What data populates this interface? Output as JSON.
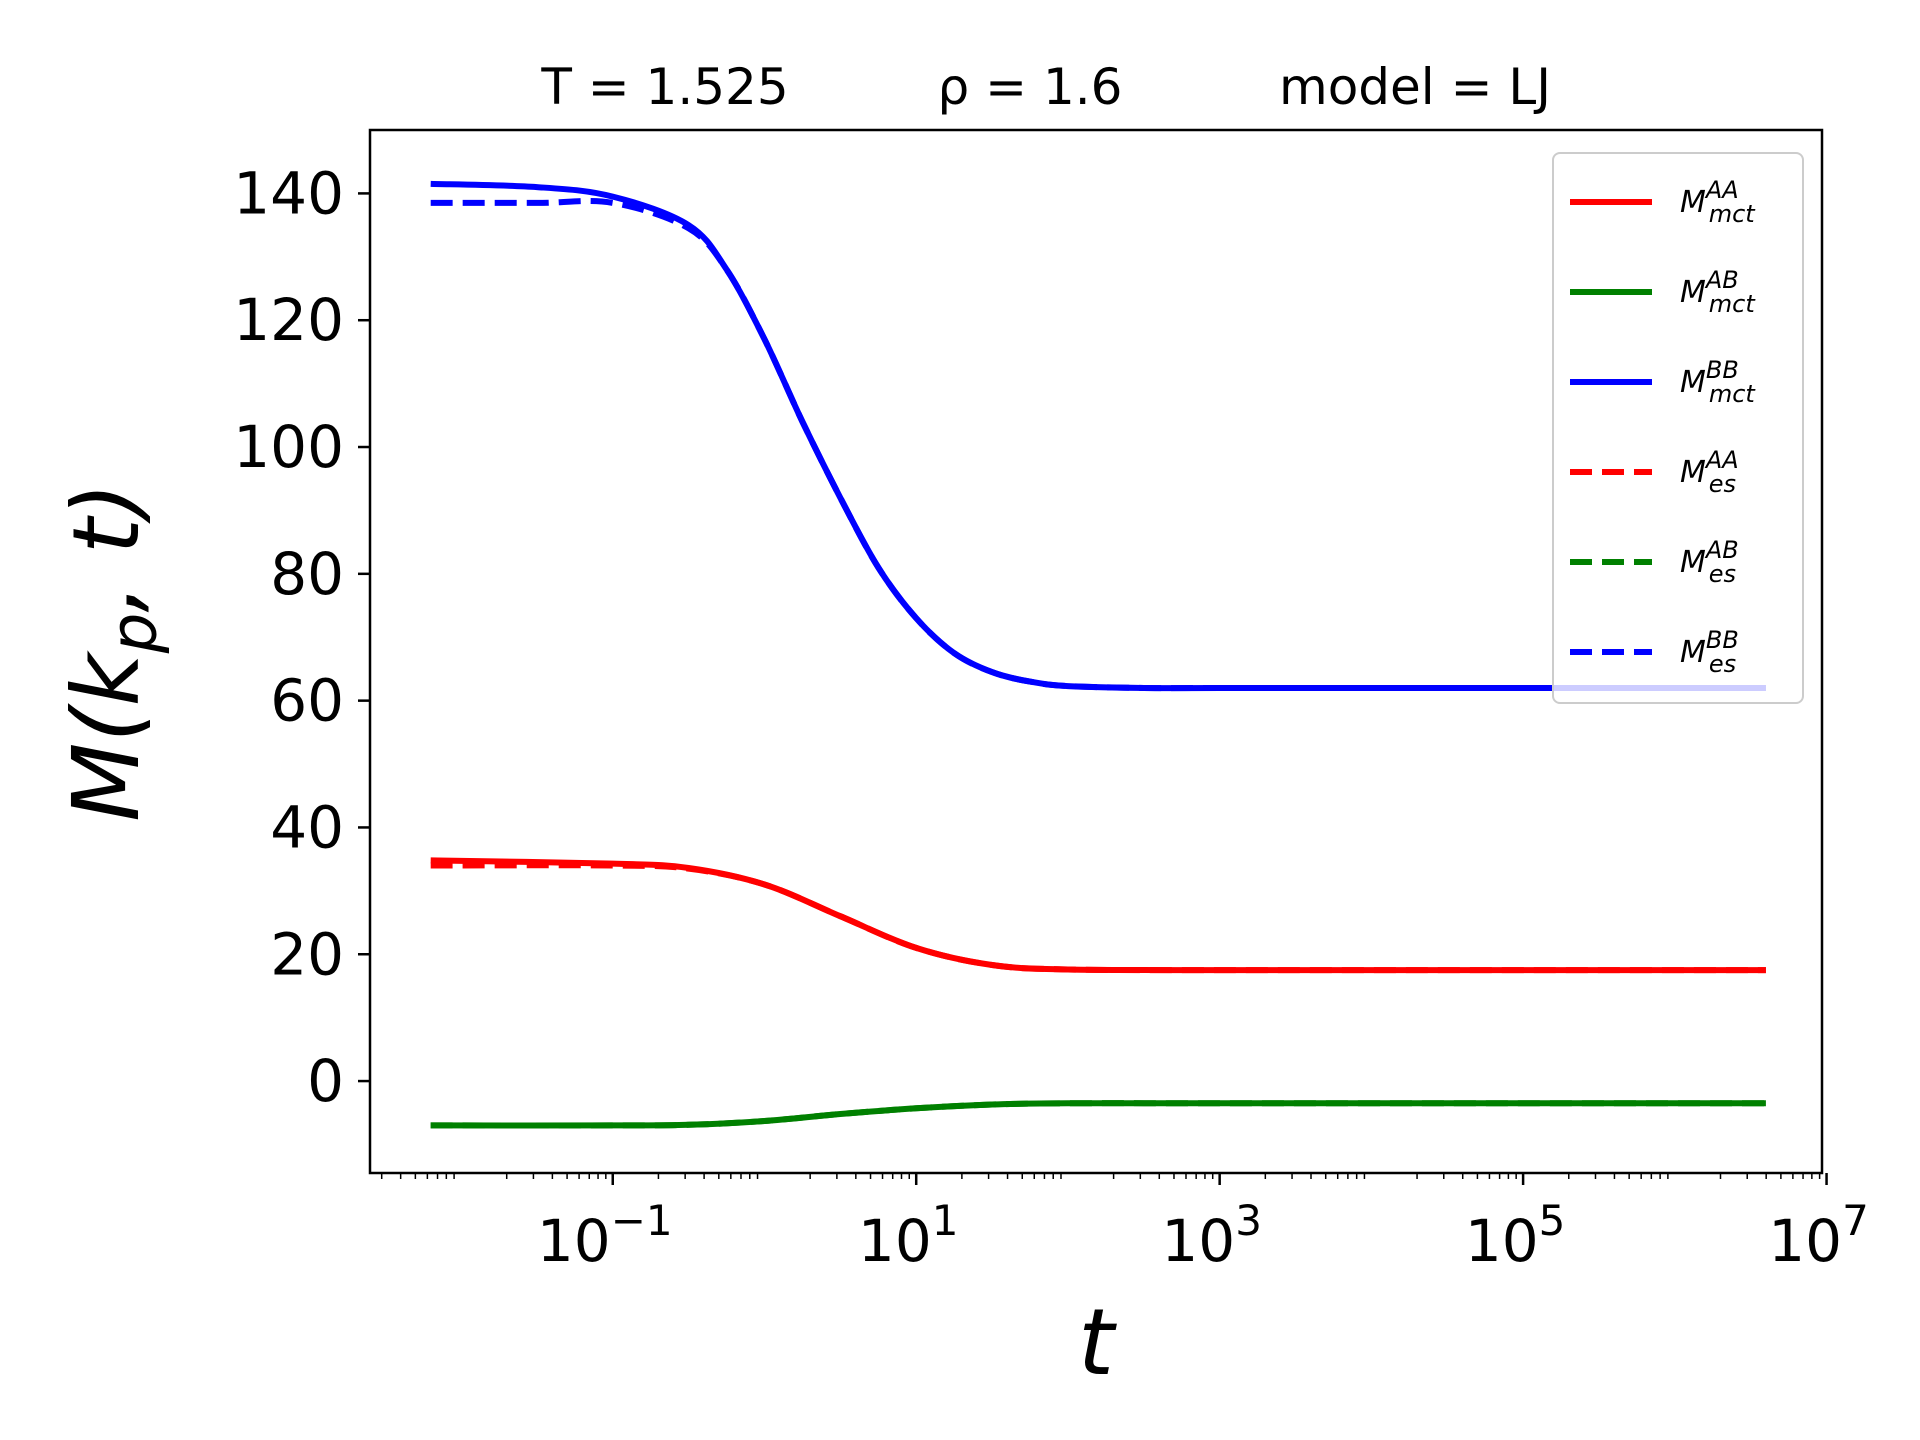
{
  "chart_data": {
    "type": "line",
    "title_parts": {
      "temperature": "T = 1.525",
      "density": "ρ = 1.6",
      "model": "model = LJ"
    },
    "xlabel": "t",
    "ylabel": "M(k_p, t)",
    "xscale": "log",
    "xlim_log10": [
      -2.6,
      6.97
    ],
    "ylim": [
      -14.5,
      150
    ],
    "x_ticks": [
      {
        "base": "10",
        "exp": "−1",
        "log10": -1
      },
      {
        "base": "10",
        "exp": "1",
        "log10": 1
      },
      {
        "base": "10",
        "exp": "3",
        "log10": 3
      },
      {
        "base": "10",
        "exp": "5",
        "log10": 5
      },
      {
        "base": "10",
        "exp": "7",
        "log10": 7
      }
    ],
    "y_ticks": [
      0,
      20,
      40,
      60,
      80,
      100,
      120,
      140
    ],
    "y_tick_labels": [
      "0",
      "20",
      "40",
      "60",
      "80",
      "100",
      "120",
      "140"
    ],
    "legend_position": "upper-right",
    "series": [
      {
        "name": "M_mct^AA",
        "sym": "M",
        "sup": "AA",
        "sub": "mct",
        "color": "#ff0000",
        "dash": "solid",
        "log10_t": [
          -2.2,
          -1.0,
          -0.5,
          0,
          0.5,
          1.0,
          1.5,
          2.0,
          3.0,
          4.0,
          5.0,
          6.6
        ],
        "values": [
          34.8,
          34.3,
          33.6,
          31.0,
          26.0,
          21.0,
          18.3,
          17.6,
          17.5,
          17.5,
          17.5,
          17.5
        ]
      },
      {
        "name": "M_mct^AB",
        "sym": "M",
        "sup": "AB",
        "sub": "mct",
        "color": "#008000",
        "dash": "solid",
        "log10_t": [
          -2.2,
          -1.0,
          -0.5,
          0,
          0.5,
          1.0,
          1.5,
          2.0,
          3.0,
          4.0,
          5.0,
          6.6
        ],
        "values": [
          -7.0,
          -7.0,
          -6.9,
          -6.3,
          -5.2,
          -4.3,
          -3.7,
          -3.5,
          -3.5,
          -3.5,
          -3.5,
          -3.5
        ]
      },
      {
        "name": "M_mct^BB",
        "sym": "M",
        "sup": "BB",
        "sub": "mct",
        "color": "#0000ff",
        "dash": "solid",
        "log10_t": [
          -2.2,
          -1.5,
          -1.0,
          -0.5,
          -0.25,
          0,
          0.25,
          0.5,
          0.75,
          1.0,
          1.25,
          1.5,
          1.75,
          2.0,
          2.5,
          3.0,
          4.0,
          5.0,
          6.6
        ],
        "values": [
          141.5,
          141.0,
          139.5,
          135.0,
          128.0,
          117.0,
          104.0,
          92.0,
          81.0,
          73.0,
          67.5,
          64.5,
          63.0,
          62.3,
          62.0,
          62.0,
          62.0,
          62.0,
          62.0
        ]
      },
      {
        "name": "M_es^AA",
        "sym": "M",
        "sup": "AA",
        "sub": "es",
        "color": "#ff0000",
        "dash": "dashed",
        "log10_t": [
          -2.2,
          -1.0,
          -0.5,
          0,
          0.5,
          1.0,
          1.5,
          2.0,
          3.0,
          4.0,
          5.0,
          6.6
        ],
        "values": [
          34.0,
          34.0,
          33.5,
          31.0,
          26.0,
          21.0,
          18.3,
          17.6,
          17.5,
          17.5,
          17.5,
          17.5
        ]
      },
      {
        "name": "M_es^AB",
        "sym": "M",
        "sup": "AB",
        "sub": "es",
        "color": "#008000",
        "dash": "dashed",
        "log10_t": [
          -2.2,
          -1.0,
          -0.5,
          0,
          0.5,
          1.0,
          1.5,
          2.0,
          3.0,
          4.0,
          5.0,
          6.6
        ],
        "values": [
          -7.0,
          -7.0,
          -6.9,
          -6.3,
          -5.2,
          -4.3,
          -3.7,
          -3.5,
          -3.5,
          -3.5,
          -3.5,
          -3.5
        ]
      },
      {
        "name": "M_es^BB",
        "sym": "M",
        "sup": "BB",
        "sub": "es",
        "color": "#0000ff",
        "dash": "dashed",
        "log10_t": [
          -2.2,
          -1.5,
          -1.0,
          -0.5,
          -0.25,
          0,
          0.25,
          0.5,
          0.75,
          1.0,
          1.25,
          1.5,
          1.75,
          2.0,
          2.5,
          3.0,
          4.0,
          5.0,
          6.6
        ],
        "values": [
          138.5,
          138.5,
          138.5,
          134.5,
          128.0,
          117.0,
          104.0,
          92.0,
          81.0,
          73.0,
          67.5,
          64.5,
          63.0,
          62.3,
          62.0,
          62.0,
          62.0,
          62.0,
          62.0
        ]
      }
    ]
  }
}
